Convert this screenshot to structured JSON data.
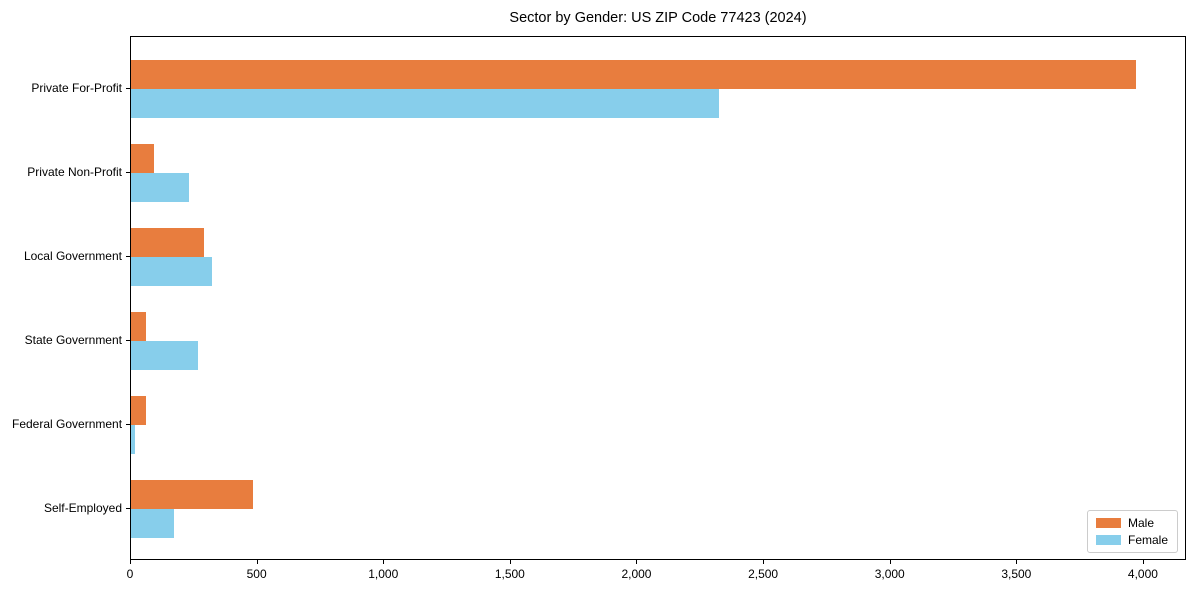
{
  "chart_data": {
    "type": "bar",
    "orientation": "horizontal",
    "title": "Sector by Gender: US ZIP Code 77423 (2024)",
    "categories": [
      "Private For-Profit",
      "Private Non-Profit",
      "Local Government",
      "State Government",
      "Federal Government",
      "Self-Employed"
    ],
    "series": [
      {
        "name": "Male",
        "color": "#e87d3e",
        "values": [
          3970,
          90,
          290,
          60,
          60,
          480
        ]
      },
      {
        "name": "Female",
        "color": "#87ceeb",
        "values": [
          2320,
          230,
          320,
          265,
          15,
          170
        ]
      }
    ],
    "xlabel": "",
    "ylabel": "",
    "xlim": [
      0,
      4170
    ],
    "xticks": {
      "values": [
        0,
        500,
        1000,
        1500,
        2000,
        2500,
        3000,
        3500,
        4000
      ],
      "labels": [
        "0",
        "500",
        "1,000",
        "1,500",
        "2,000",
        "2,500",
        "3,000",
        "3,500",
        "4,000"
      ]
    },
    "grid": false,
    "legend": {
      "position": "lower right"
    },
    "colors": {
      "axis": "#000000",
      "background": "#ffffff",
      "legend_border": "#cccccc"
    }
  }
}
